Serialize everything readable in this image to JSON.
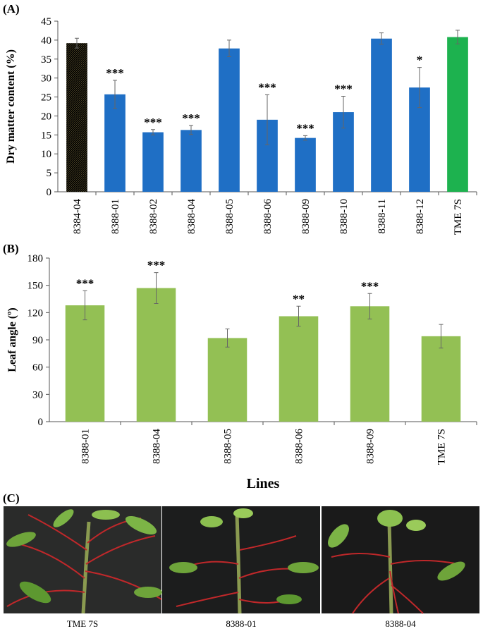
{
  "chart_data": [
    {
      "type": "bar",
      "panel_label": "(A)",
      "ylabel": "Dry matter content (%)",
      "categories": [
        "8384-04",
        "8388-01",
        "8388-02",
        "8388-04",
        "8388-05",
        "8388-06",
        "8388-09",
        "8388-10",
        "8388-11",
        "8388-12",
        "TME 7S"
      ],
      "values": [
        39.2,
        25.7,
        15.7,
        16.3,
        37.8,
        19,
        14.2,
        21,
        40.4,
        27.5,
        40.8
      ],
      "errors": [
        1.3,
        3.7,
        0.7,
        1.2,
        2.2,
        6.6,
        0.6,
        4.2,
        1.5,
        5.3,
        1.8
      ],
      "annotations": [
        null,
        "***",
        "***",
        "***",
        null,
        "***",
        "***",
        "***",
        null,
        "*",
        null
      ],
      "colors": [
        "#8a7b48",
        "#1f6fc5",
        "#1f6fc5",
        "#1f6fc5",
        "#1f6fc5",
        "#1f6fc5",
        "#1f6fc5",
        "#1f6fc5",
        "#1f6fc5",
        "#1f6fc5",
        "#1db24f"
      ],
      "ylim": [
        0,
        45
      ],
      "yticks": [
        0,
        5,
        10,
        15,
        20,
        25,
        30,
        35,
        40,
        45
      ]
    },
    {
      "type": "bar",
      "panel_label": "(B)",
      "ylabel": "Leaf angle (º)",
      "xlabel": "Lines",
      "categories": [
        "8388-01",
        "8388-04",
        "8388-05",
        "8388-06",
        "8388-09",
        "TME 7S"
      ],
      "values": [
        128,
        147,
        92,
        116,
        127,
        94
      ],
      "errors": [
        16,
        17,
        10,
        11,
        14,
        13
      ],
      "annotations": [
        "***",
        "***",
        null,
        "**",
        "***",
        null
      ],
      "colors": [
        "#93c054",
        "#93c054",
        "#93c054",
        "#93c054",
        "#93c054",
        "#93c054"
      ],
      "ylim": [
        0,
        180
      ],
      "yticks": [
        0,
        30,
        60,
        90,
        120,
        150,
        180
      ]
    }
  ],
  "photos": {
    "panel_label": "(C)",
    "captions": [
      "TME 7S",
      "8388-01",
      "8388-04"
    ]
  }
}
